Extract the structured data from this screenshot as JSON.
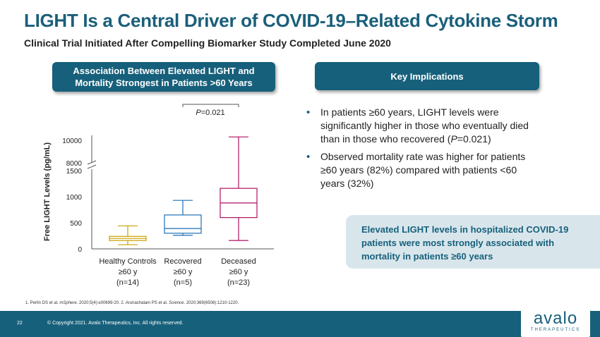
{
  "title": "LIGHT Is a Central Driver of COVID-19–Related Cytokine Storm",
  "subtitle": "Clinical Trial Initiated After Compelling Biomarker Study Completed June 2020",
  "left_header": {
    "line1": "Association Between Elevated LIGHT and",
    "line2": "Mortality Strongest in Patients >60 Years"
  },
  "right_header": "Key Implications",
  "chart": {
    "p_value": "P=0.021",
    "ylabel": "Free LIGHT Levels (pg/mL)",
    "y_ticks": [
      "0",
      "500",
      "1000",
      "1500",
      "8000",
      "10000"
    ],
    "groups": [
      {
        "name": "Healthy Controls",
        "age": "≥60 y",
        "n": "(n=14)"
      },
      {
        "name": "Recovered",
        "age": "≥60 y",
        "n": "(n=5)"
      },
      {
        "name": "Deceased",
        "age": "≥60 y",
        "n": "(n=23)"
      }
    ]
  },
  "chart_data": {
    "type": "box",
    "title": "",
    "xlabel": "",
    "ylabel": "Free LIGHT Levels (pg/mL)",
    "axis_break": [
      1500,
      8000
    ],
    "ylim": [
      0,
      10500
    ],
    "annotation": "P=0.021",
    "categories": [
      "Healthy Controls ≥60 y (n=14)",
      "Recovered ≥60 y (n=5)",
      "Deceased ≥60 y (n=23)"
    ],
    "series": [
      {
        "whisker_low": 80,
        "q1": 160,
        "median": 200,
        "q3": 240,
        "whisker_high": 440,
        "color": "#c8a000"
      },
      {
        "whisker_low": 260,
        "q1": 300,
        "median": 390,
        "q3": 650,
        "whisker_high": 930,
        "color": "#1f6fb5"
      },
      {
        "whisker_low": 160,
        "q1": 600,
        "median": 880,
        "q3": 1160,
        "whisker_high": 10300,
        "color": "#b01060"
      }
    ]
  },
  "bullets": [
    {
      "a": "In patients ≥60 years, LIGHT levels were significantly higher in those who eventually died than in those who recovered (",
      "b": "P",
      "c": "=0.021)"
    },
    {
      "a": "Observed mortality rate was higher for patients ≥60 years (82%) compared with patients <60 years (32%)",
      "b": "",
      "c": ""
    }
  ],
  "callout": "Elevated LIGHT levels in hospitalized COVID-19 patients were most strongly associated with mortality in patients ≥60 years",
  "references": {
    "r1a": "1. Perlin DS et al. ",
    "r1b": "mSphere",
    "r1c": ". 2020;5(4):e00699-20. 2. Arunachalam PS et al. ",
    "r2b": "Science",
    "r2c": ". 2020;369(6508):1210-1220."
  },
  "footer": {
    "page": "22",
    "copyright": "© Copyright 2021. Avalo Therapeutics, Inc. All rights reserved.",
    "logo": "avalo",
    "logo_sub": "THERAPEUTICS"
  },
  "colors": {
    "brand": "#17607b",
    "healthy": "#c8a000",
    "recovered": "#1f6fb5",
    "deceased": "#b01060"
  }
}
